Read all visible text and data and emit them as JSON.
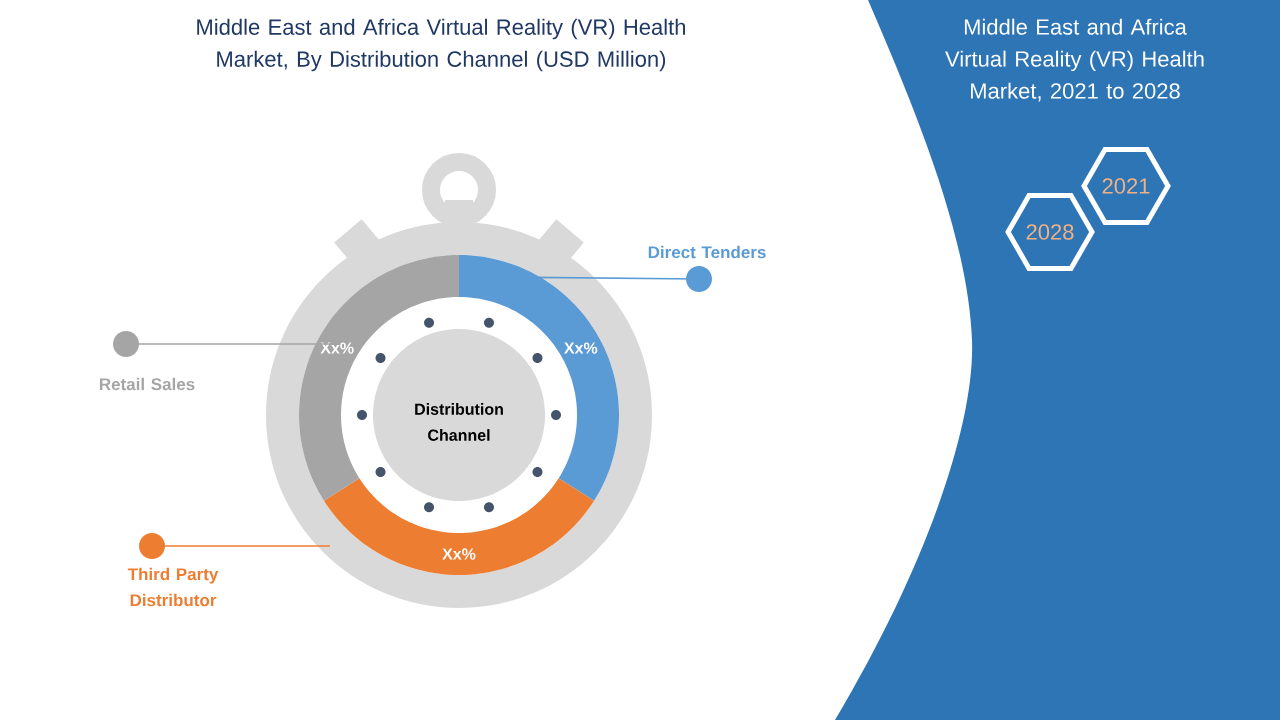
{
  "chart_data": {
    "type": "donut",
    "title": "Middle East and Africa Virtual Reality (VR) Health Market, By Distribution Channel (USD Million)",
    "subtitle": "Middle East and Africa Virtual Reality (VR) Health Market, 2021 to 2028",
    "categories": [
      "Direct Tenders",
      "Third Party Distributor",
      "Retail Sales"
    ],
    "values": [
      34,
      32,
      34
    ],
    "colors": [
      "#5b9bd5",
      "#ed7d31",
      "#a5a5a5"
    ],
    "value_labels": [
      "Xx%",
      "Xx%",
      "Xx%"
    ],
    "annotations": [
      "Distribution Channel",
      "2021",
      "2028"
    ]
  }
}
